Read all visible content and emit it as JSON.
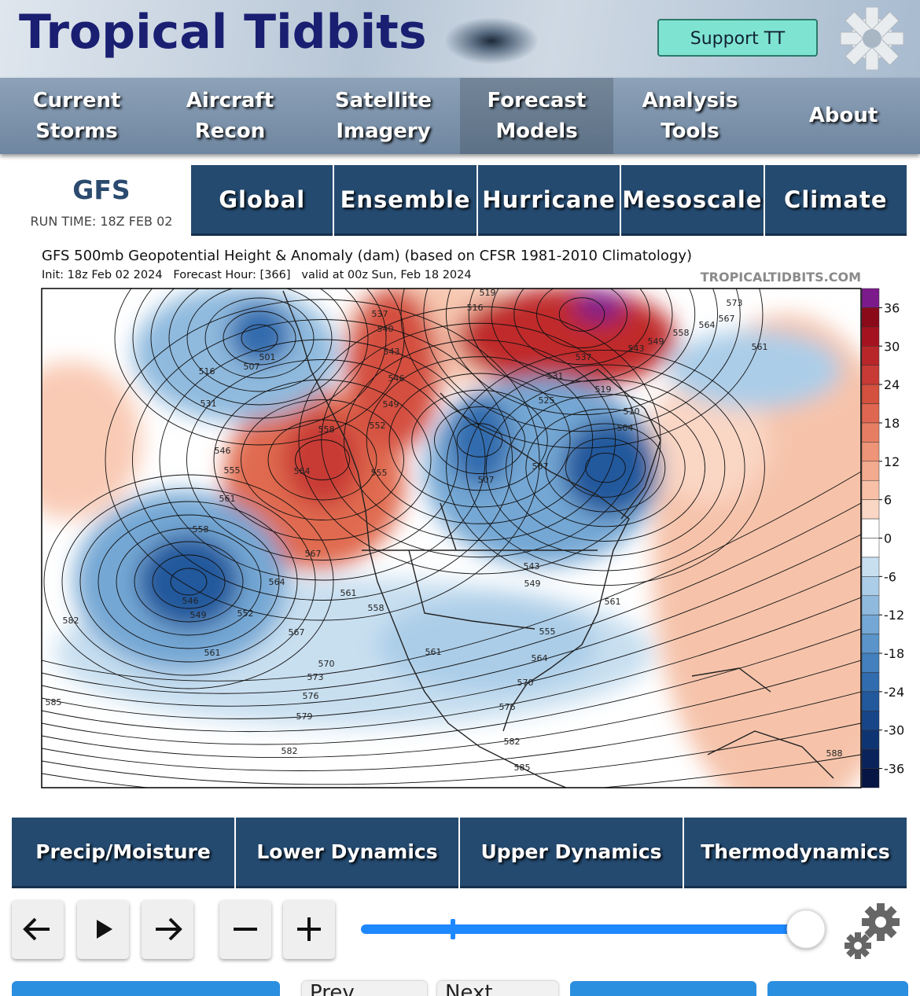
{
  "header": {
    "logo": "Tropical Tidbits",
    "support": "Support TT"
  },
  "nav": [
    "Current Storms",
    "Aircraft Recon",
    "Satellite Imagery",
    "Forecast Models",
    "Analysis Tools",
    "About"
  ],
  "model": {
    "name": "GFS",
    "run_time": "RUN TIME: 18Z FEB 02"
  },
  "tabs": [
    "Global",
    "Ensemble",
    "Hurricane",
    "Mesoscale",
    "Climate"
  ],
  "chart_data": {
    "type": "contour-map",
    "title": "GFS 500mb Geopotential Height & Anomaly (dam) (based on CFSR 1981-2010 Climatology)",
    "subtitle": "Init: 18z Feb 02 2024   Forecast Hour: [366]   valid at 00z Sun, Feb 18 2024",
    "source": "TROPICALTIDBITS.COM",
    "colorbar": {
      "lim": [
        -39,
        39
      ],
      "ticks": [
        36,
        30,
        24,
        18,
        12,
        6,
        0,
        -6,
        -12,
        -18,
        -24,
        -30,
        -36
      ],
      "bounds": [
        39,
        36,
        33,
        30,
        27,
        24,
        21,
        18,
        15,
        12,
        9,
        6,
        3,
        0,
        -3,
        -6,
        -9,
        -12,
        -15,
        -18,
        -21,
        -24,
        -27,
        -30,
        -33,
        -36,
        -39
      ],
      "colors": [
        "#7b1a8a",
        "#8b0a1a",
        "#a5121f",
        "#b8262a",
        "#c83a35",
        "#d4503f",
        "#df6650",
        "#e77e63",
        "#ee9478",
        "#f3aa8e",
        "#f7c0a7",
        "#fad6c4",
        "#ffffff",
        "#ffffff",
        "#c8dff0",
        "#abcde8",
        "#8fbade",
        "#74a7d4",
        "#5a94c9",
        "#4380bd",
        "#316cae",
        "#22589c",
        "#174588",
        "#0f3472",
        "#0a245b",
        "#061544"
      ]
    },
    "contour_labels": [
      "501",
      "507",
      "516",
      "531",
      "546",
      "555",
      "561",
      "558",
      "546",
      "549",
      "552",
      "561",
      "567",
      "570",
      "573",
      "576",
      "579",
      "582",
      "585",
      "582",
      "564",
      "567",
      "558",
      "564",
      "552",
      "555",
      "549",
      "546",
      "543",
      "540",
      "537",
      "519",
      "516",
      "510",
      "504",
      "507",
      "507",
      "561",
      "573",
      "567",
      "564",
      "558",
      "549",
      "543",
      "537",
      "531",
      "525",
      "519",
      "561",
      "588",
      "585",
      "582",
      "576",
      "570",
      "564",
      "555",
      "549",
      "543",
      "561",
      "558",
      "561"
    ]
  },
  "categories": [
    "Precip/Moisture",
    "Lower Dynamics",
    "Upper Dynamics",
    "Thermodynamics"
  ],
  "controls": {
    "prev": "Prev",
    "next": "Next"
  }
}
